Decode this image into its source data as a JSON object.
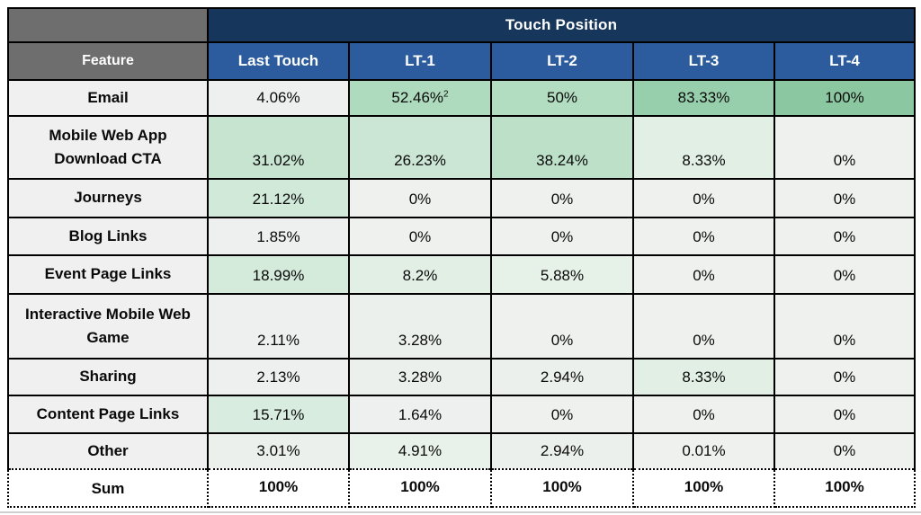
{
  "banner": {
    "label": "Touch Position"
  },
  "header": {
    "feature_label": "Feature",
    "columns": [
      "Last Touch",
      "LT-1",
      "LT-2",
      "LT-3",
      "LT-4"
    ]
  },
  "colors": {
    "banner_bg": "#16365C",
    "column_header_bg": "#2C5C9E",
    "corner_and_feature_header_bg": "#6E6E6E",
    "feature_cell_bg": "#F0F0F0",
    "zero_cell_bg": "#EFF1EF",
    "max_green_bg": "#8BC8A1",
    "border": "#000000",
    "header_text": "#FFFFFF",
    "body_text": "#0A0A0A",
    "sum_row_bg": "#FFFFFF"
  },
  "rows": [
    {
      "feature": "Email",
      "values": [
        "4.06%",
        "52.46%",
        "50%",
        "83.33%",
        "100%"
      ],
      "sup": [
        "",
        "2",
        "",
        "",
        ""
      ],
      "bg": [
        "#EEF0EF",
        "#AEDBBE",
        "#B2DDC1",
        "#97CFAD",
        "#8BC8A1"
      ]
    },
    {
      "feature": "Mobile Web App Download CTA",
      "values": [
        "31.02%",
        "26.23%",
        "38.24%",
        "8.33%",
        "0%"
      ],
      "sup": [
        "",
        "",
        "",
        "",
        ""
      ],
      "bg": [
        "#C6E4D0",
        "#CBE6D4",
        "#BCE0C8",
        "#E2EFE5",
        "#EFF1EF"
      ]
    },
    {
      "feature": "Journeys",
      "values": [
        "21.12%",
        "0%",
        "0%",
        "0%",
        "0%"
      ],
      "sup": [
        "",
        "",
        "",
        "",
        ""
      ],
      "bg": [
        "#D1E9D9",
        "#EFF1EF",
        "#EFF1EF",
        "#EFF1EF",
        "#EFF1EF"
      ]
    },
    {
      "feature": "Blog Links",
      "values": [
        "1.85%",
        "0%",
        "0%",
        "0%",
        "0%"
      ],
      "sup": [
        "",
        "",
        "",
        "",
        ""
      ],
      "bg": [
        "#EDF0EE",
        "#EFF1EF",
        "#EFF1EF",
        "#EFF1EF",
        "#EFF1EF"
      ]
    },
    {
      "feature": "Event Page Links",
      "values": [
        "18.99%",
        "8.2%",
        "5.88%",
        "0%",
        "0%"
      ],
      "sup": [
        "",
        "",
        "",
        "",
        ""
      ],
      "bg": [
        "#D4EADB",
        "#E2EFE5",
        "#E6F1E8",
        "#EFF1EF",
        "#EFF1EF"
      ]
    },
    {
      "feature": "Interactive Mobile Web Game",
      "values": [
        "2.11%",
        "3.28%",
        "0%",
        "0%",
        "0%"
      ],
      "sup": [
        "",
        "",
        "",
        "",
        ""
      ],
      "bg": [
        "#EDF0EE",
        "#EBF0EC",
        "#EFF1EF",
        "#EFF1EF",
        "#EFF1EF"
      ]
    },
    {
      "feature": "Sharing",
      "values": [
        "2.13%",
        "3.28%",
        "2.94%",
        "8.33%",
        "0%"
      ],
      "sup": [
        "",
        "",
        "",
        "",
        ""
      ],
      "bg": [
        "#EDF0EE",
        "#EBF0EC",
        "#EBF0EC",
        "#E2EFE5",
        "#EFF1EF"
      ]
    },
    {
      "feature": "Content Page Links",
      "values": [
        "15.71%",
        "1.64%",
        "0%",
        "0%",
        "0%"
      ],
      "sup": [
        "",
        "",
        "",
        "",
        ""
      ],
      "bg": [
        "#D8ECDF",
        "#EDF0EE",
        "#EFF1EF",
        "#EFF1EF",
        "#EFF1EF"
      ]
    },
    {
      "feature": "Other",
      "values": [
        "3.01%",
        "4.91%",
        "2.94%",
        "0.01%",
        "0%"
      ],
      "sup": [
        "",
        "",
        "",
        "",
        ""
      ],
      "bg": [
        "#EBF0EC",
        "#E8F2EA",
        "#EBF0EC",
        "#EFF1EF",
        "#EFF1EF"
      ]
    }
  ],
  "sum_row": {
    "feature": "Sum",
    "values": [
      "100%",
      "100%",
      "100%",
      "100%",
      "100%"
    ]
  },
  "chart_data": {
    "type": "table",
    "title": "Touch Position",
    "row_header": "Feature",
    "columns": [
      "Last Touch",
      "LT-1",
      "LT-2",
      "LT-3",
      "LT-4"
    ],
    "rows": [
      {
        "feature": "Email",
        "values_pct": [
          4.06,
          52.46,
          50,
          83.33,
          100
        ],
        "footnote": "52.46 carries superscript 2"
      },
      {
        "feature": "Mobile Web App Download CTA",
        "values_pct": [
          31.02,
          26.23,
          38.24,
          8.33,
          0
        ]
      },
      {
        "feature": "Journeys",
        "values_pct": [
          21.12,
          0,
          0,
          0,
          0
        ]
      },
      {
        "feature": "Blog Links",
        "values_pct": [
          1.85,
          0,
          0,
          0,
          0
        ]
      },
      {
        "feature": "Event Page Links",
        "values_pct": [
          18.99,
          8.2,
          5.88,
          0,
          0
        ]
      },
      {
        "feature": "Interactive Mobile Web Game",
        "values_pct": [
          2.11,
          3.28,
          0,
          0,
          0
        ]
      },
      {
        "feature": "Sharing",
        "values_pct": [
          2.13,
          3.28,
          2.94,
          8.33,
          0
        ]
      },
      {
        "feature": "Content Page Links",
        "values_pct": [
          15.71,
          1.64,
          0,
          0,
          0
        ]
      },
      {
        "feature": "Other",
        "values_pct": [
          3.01,
          4.91,
          2.94,
          0.01,
          0
        ]
      }
    ],
    "sum_row": {
      "feature": "Sum",
      "values_pct": [
        100,
        100,
        100,
        100,
        100
      ]
    },
    "layout_hints": "White-to-green conditional color scale on value cells; higher percent = darker green; Sum row separated by dotted borders"
  }
}
